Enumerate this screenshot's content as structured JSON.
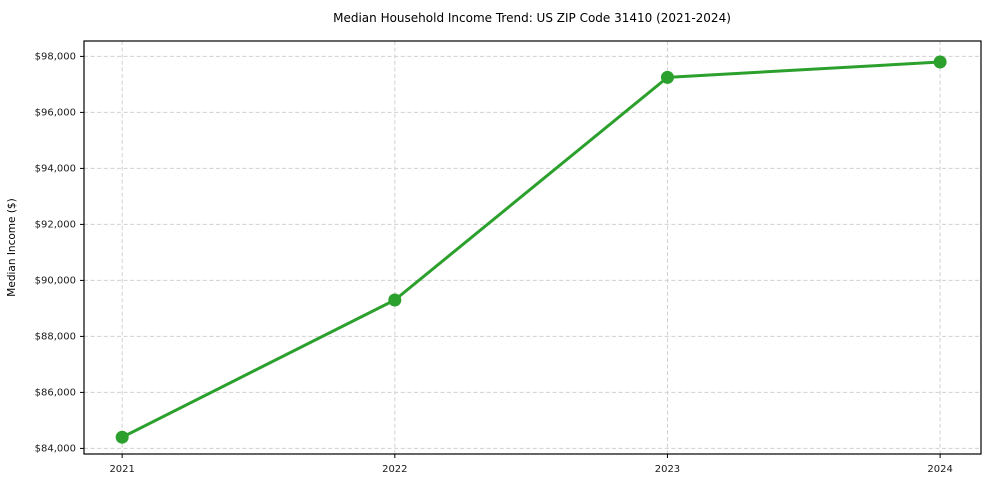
{
  "figure": {
    "background": "#ffffff"
  },
  "chart_data": {
    "type": "line",
    "title": "Median Household Income Trend: US ZIP Code 31410 (2021-2024)",
    "xlabel": "",
    "ylabel": "Median Income ($)",
    "categories": [
      2021,
      2022,
      2023,
      2024
    ],
    "series": [
      {
        "name": "Median Income",
        "values": [
          84400,
          89300,
          97250,
          97800
        ],
        "color": "#2ca02c",
        "marker": "circle",
        "marker_size": 6.5,
        "line_width": 3
      }
    ],
    "x_ticks": [
      {
        "value": 2021,
        "label": "2021"
      },
      {
        "value": 2022,
        "label": "2022"
      },
      {
        "value": 2023,
        "label": "2023"
      },
      {
        "value": 2024,
        "label": "2024"
      }
    ],
    "y_ticks": [
      {
        "value": 84000,
        "label": "$84,000"
      },
      {
        "value": 86000,
        "label": "$86,000"
      },
      {
        "value": 88000,
        "label": "$88,000"
      },
      {
        "value": 90000,
        "label": "$90,000"
      },
      {
        "value": 92000,
        "label": "$92,000"
      },
      {
        "value": 94000,
        "label": "$94,000"
      },
      {
        "value": 96000,
        "label": "$96,000"
      },
      {
        "value": 98000,
        "label": "$98,000"
      }
    ],
    "xlim": [
      2020.86,
      2024.15
    ],
    "ylim": [
      83800,
      98550
    ],
    "grid": true,
    "grid_style": "dashed",
    "grid_color": "#d0d0d0",
    "spine_color": "#000000",
    "tick_color": "#000000",
    "legend": "none"
  }
}
